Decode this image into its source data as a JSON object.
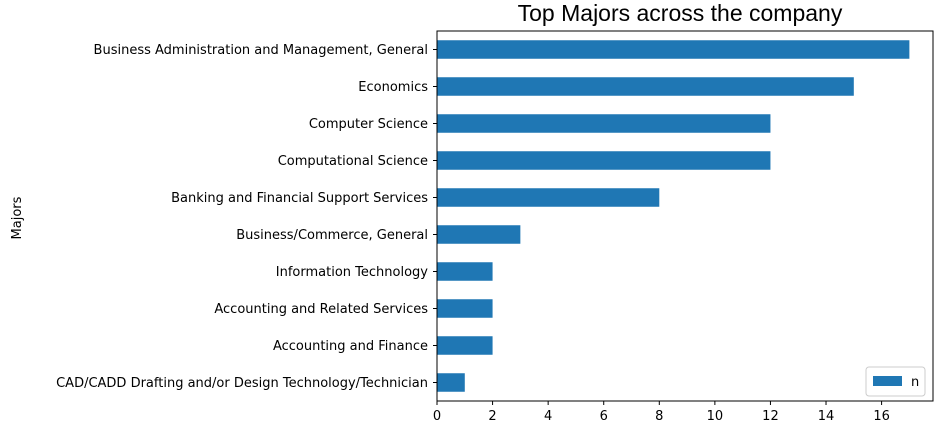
{
  "chart_data": {
    "type": "bar",
    "orientation": "horizontal",
    "title": "Top Majors across the company",
    "xlabel": "",
    "ylabel": "Majors",
    "categories": [
      "CAD/CADD Drafting and/or Design Technology/Technician",
      "Accounting and Finance",
      "Accounting and Related Services",
      "Information Technology",
      "Business/Commerce, General",
      "Banking and Financial Support Services",
      "Computational Science",
      "Computer Science",
      "Economics",
      "Business Administration and Management, General"
    ],
    "series": [
      {
        "name": "n",
        "color": "#1f77b4",
        "values": [
          1,
          2,
          2,
          2,
          3,
          8,
          12,
          12,
          15,
          17
        ]
      }
    ],
    "xlim": [
      0,
      17.85
    ],
    "xticks": [
      0,
      2,
      4,
      6,
      8,
      10,
      12,
      14,
      16
    ],
    "grid": false,
    "legend": {
      "position": "lower-right",
      "entries": [
        "n"
      ]
    }
  }
}
